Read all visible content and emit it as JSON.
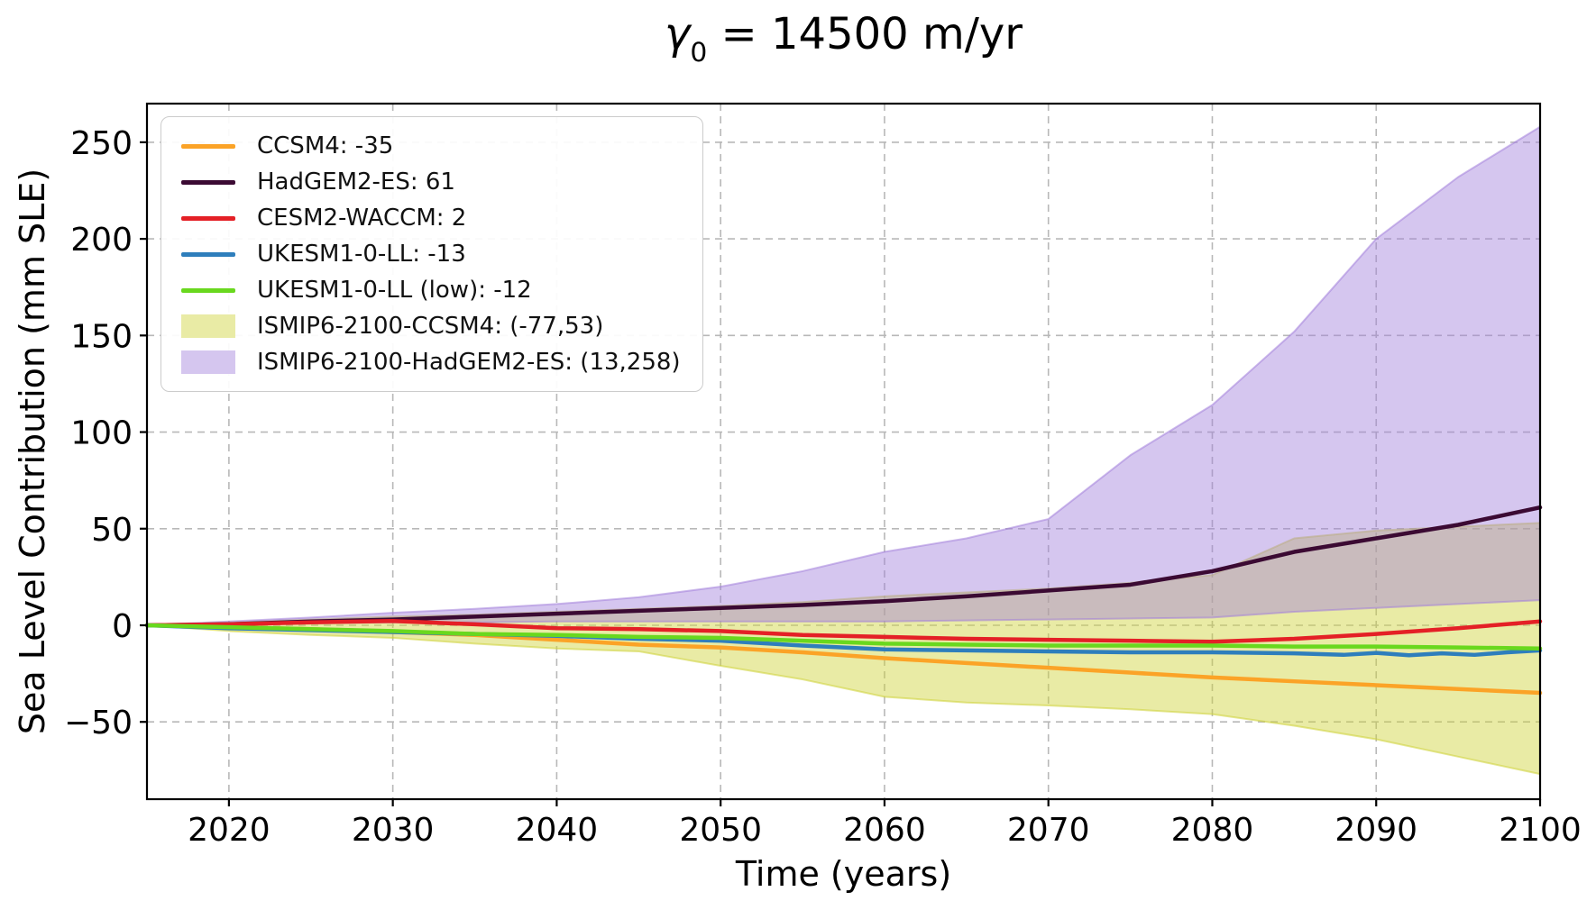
{
  "title": {
    "gamma": "γ",
    "sub": "0",
    "rest": " = 14500 m/yr"
  },
  "chart_data": {
    "type": "line",
    "title": "γ0 = 14500 m/yr",
    "xlabel": "Time (years)",
    "ylabel": "Sea Level Contribution (mm SLE)",
    "xlim": [
      2015,
      2100
    ],
    "ylim": [
      -90,
      270
    ],
    "x_ticks": [
      2020,
      2030,
      2040,
      2050,
      2060,
      2070,
      2080,
      2090,
      2100
    ],
    "y_ticks": [
      -50,
      0,
      50,
      100,
      150,
      200,
      250
    ],
    "y_tick_labels": [
      "−50",
      "0",
      "50",
      "100",
      "150",
      "200",
      "250"
    ],
    "grid": "dashed",
    "grid_color": "#b8b8b8",
    "frame_color": "#000000",
    "legend_position": "upper-left",
    "years": [
      2015,
      2020,
      2025,
      2030,
      2035,
      2040,
      2045,
      2050,
      2055,
      2060,
      2065,
      2070,
      2075,
      2080,
      2085,
      2090,
      2095,
      2100
    ],
    "series": [
      {
        "name": "CCSM4",
        "label": "CCSM4: -35",
        "end_value": -35,
        "color": "#FBA327",
        "values": [
          0,
          -1,
          -2,
          -3.5,
          -5,
          -7.5,
          -10,
          -11.5,
          -14,
          -17,
          -19.5,
          -22,
          -24.5,
          -27,
          -29,
          -31,
          -33,
          -35
        ]
      },
      {
        "name": "HadGEM2-ES",
        "label": "HadGEM2-ES: 61",
        "end_value": 61,
        "color": "#3B0A33",
        "values": [
          0,
          0.5,
          2,
          3,
          4.5,
          6,
          7.5,
          9,
          10.5,
          12.5,
          15,
          18,
          21,
          28,
          38,
          45,
          52,
          61
        ]
      },
      {
        "name": "CESM2-WACCM",
        "label": "CESM2-WACCM: 2",
        "end_value": 2,
        "color": "#E42026",
        "values": [
          0,
          0.5,
          1.5,
          2.2,
          0.5,
          -1.5,
          -2,
          -3,
          -5,
          -6,
          -7,
          -7.5,
          -8,
          -8.5,
          -7,
          -4.5,
          -1.5,
          2
        ]
      },
      {
        "name": "UKESM1-0-LL",
        "label": "UKESM1-0-LL: -13",
        "end_value": -13,
        "color": "#2E7EBC",
        "x": [
          2015,
          2020,
          2025,
          2030,
          2035,
          2040,
          2045,
          2050,
          2055,
          2060,
          2065,
          2070,
          2075,
          2080,
          2085,
          2088,
          2090,
          2092,
          2094,
          2096,
          2098,
          2100
        ],
        "values": [
          0,
          -1.5,
          -2.5,
          -3.5,
          -4.5,
          -5.5,
          -7,
          -8,
          -10.5,
          -12.5,
          -13,
          -13.5,
          -14,
          -14,
          -14.5,
          -15.3,
          -14.3,
          -15.5,
          -14.5,
          -15.3,
          -14,
          -13
        ]
      },
      {
        "name": "UKESM1-0-LL (low)",
        "label": "UKESM1-0-LL (low): -12",
        "end_value": -12,
        "color": "#69D81E",
        "values": [
          0,
          -1,
          -2,
          -3,
          -4.5,
          -5,
          -6,
          -6.5,
          -8,
          -9.5,
          -10,
          -10.5,
          -10.5,
          -10.5,
          -11,
          -11,
          -11.5,
          -12
        ]
      }
    ],
    "bands": [
      {
        "name": "ISMIP6-2100-CCSM4",
        "label": "ISMIP6-2100-CCSM4: (-77,53)",
        "range_at_2100": [
          -77,
          53
        ],
        "fill": "#CED237",
        "opacity": 0.45,
        "legend_color": "#E9EBA5",
        "lower": [
          0,
          -3,
          -5,
          -6.5,
          -9.5,
          -12,
          -13.5,
          -21,
          -28,
          -37,
          -40,
          -41.5,
          -43.5,
          -46,
          -52,
          -59,
          -68,
          -77
        ],
        "upper": [
          0,
          1.5,
          3,
          4.5,
          5.5,
          7,
          8.5,
          10,
          12,
          15,
          17,
          19,
          22,
          26,
          45,
          49,
          51,
          53
        ]
      },
      {
        "name": "ISMIP6-2100-HadGEM2-ES",
        "label": "ISMIP6-2100-HadGEM2-ES: (13,258)",
        "range_at_2100": [
          13,
          258
        ],
        "fill": "#A280DB",
        "opacity": 0.45,
        "legend_color": "#D5C6EF",
        "lower": [
          0,
          0.5,
          1,
          1.5,
          1.5,
          2,
          2,
          2,
          2,
          2,
          2.5,
          3,
          3.5,
          4,
          7,
          9,
          11,
          13
        ],
        "upper": [
          0,
          2,
          4,
          6.5,
          8.5,
          11,
          14.5,
          20,
          28,
          38,
          45,
          55,
          88,
          114,
          152,
          200,
          232,
          258
        ]
      }
    ]
  }
}
